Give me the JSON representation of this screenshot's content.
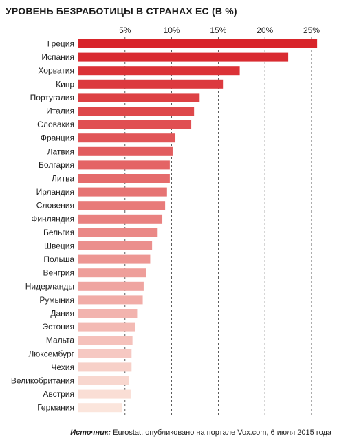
{
  "chart_data": {
    "type": "bar",
    "orientation": "horizontal",
    "title": "УРОВЕНЬ БЕЗРАБОТИЦЫ В СТРАНАХ ЕС  (В %)",
    "xlim": [
      0,
      26
    ],
    "ticks": [
      5,
      10,
      15,
      20,
      25
    ],
    "tick_labels": [
      "5%",
      "10%",
      "15%",
      "20%",
      "25%"
    ],
    "grid": "vertical dashed lines at ticks",
    "categories": [
      "Греция",
      "Испания",
      "Хорватия",
      "Кипр",
      "Португалия",
      "Италия",
      "Словакия",
      "Франция",
      "Латвия",
      "Болгария",
      "Литва",
      "Ирландия",
      "Словения",
      "Финляндия",
      "Бельгия",
      "Швеция",
      "Польша",
      "Венгрия",
      "Нидерланды",
      "Румыния",
      "Дания",
      "Эстония",
      "Мальта",
      "Люксембург",
      "Чехия",
      "Великобритания",
      "Австрия",
      "Германия"
    ],
    "values": [
      25.6,
      22.5,
      17.3,
      15.5,
      13.0,
      12.4,
      12.1,
      10.4,
      10.1,
      9.8,
      9.8,
      9.5,
      9.3,
      9.0,
      8.5,
      7.9,
      7.7,
      7.3,
      7.0,
      6.9,
      6.3,
      6.1,
      5.8,
      5.7,
      5.7,
      5.4,
      5.6,
      4.7
    ],
    "colors": {
      "top": "#d8242a",
      "bottom": "#fbe5dc"
    }
  },
  "source": {
    "label": "Источник:",
    "text": "Eurostat, опубликовано на портале Vox.com, 6 июля 2015 года"
  }
}
